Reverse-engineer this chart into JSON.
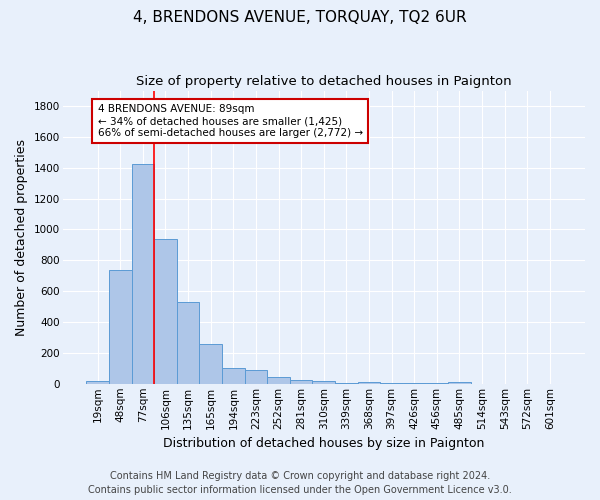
{
  "title": "4, BRENDONS AVENUE, TORQUAY, TQ2 6UR",
  "subtitle": "Size of property relative to detached houses in Paignton",
  "xlabel": "Distribution of detached houses by size in Paignton",
  "ylabel": "Number of detached properties",
  "footer_line1": "Contains HM Land Registry data © Crown copyright and database right 2024.",
  "footer_line2": "Contains public sector information licensed under the Open Government Licence v3.0.",
  "categories": [
    "19sqm",
    "48sqm",
    "77sqm",
    "106sqm",
    "135sqm",
    "165sqm",
    "194sqm",
    "223sqm",
    "252sqm",
    "281sqm",
    "310sqm",
    "339sqm",
    "368sqm",
    "397sqm",
    "426sqm",
    "456sqm",
    "485sqm",
    "514sqm",
    "543sqm",
    "572sqm",
    "601sqm"
  ],
  "values": [
    20,
    740,
    1425,
    935,
    530,
    260,
    100,
    90,
    45,
    25,
    15,
    5,
    12,
    3,
    2,
    2,
    12,
    1,
    1,
    1,
    1
  ],
  "bar_color": "#aec6e8",
  "bar_edge_color": "#5b9bd5",
  "red_line_bin": 2,
  "annotation_text_line1": "4 BRENDONS AVENUE: 89sqm",
  "annotation_text_line2": "← 34% of detached houses are smaller (1,425)",
  "annotation_text_line3": "66% of semi-detached houses are larger (2,772) →",
  "annotation_box_color": "#ffffff",
  "annotation_box_edge": "#cc0000",
  "ylim": [
    0,
    1900
  ],
  "yticks": [
    0,
    200,
    400,
    600,
    800,
    1000,
    1200,
    1400,
    1600,
    1800
  ],
  "background_color": "#e8f0fb",
  "grid_color": "#ffffff",
  "title_fontsize": 11,
  "subtitle_fontsize": 9.5,
  "axis_label_fontsize": 9,
  "tick_fontsize": 7.5,
  "footer_fontsize": 7
}
